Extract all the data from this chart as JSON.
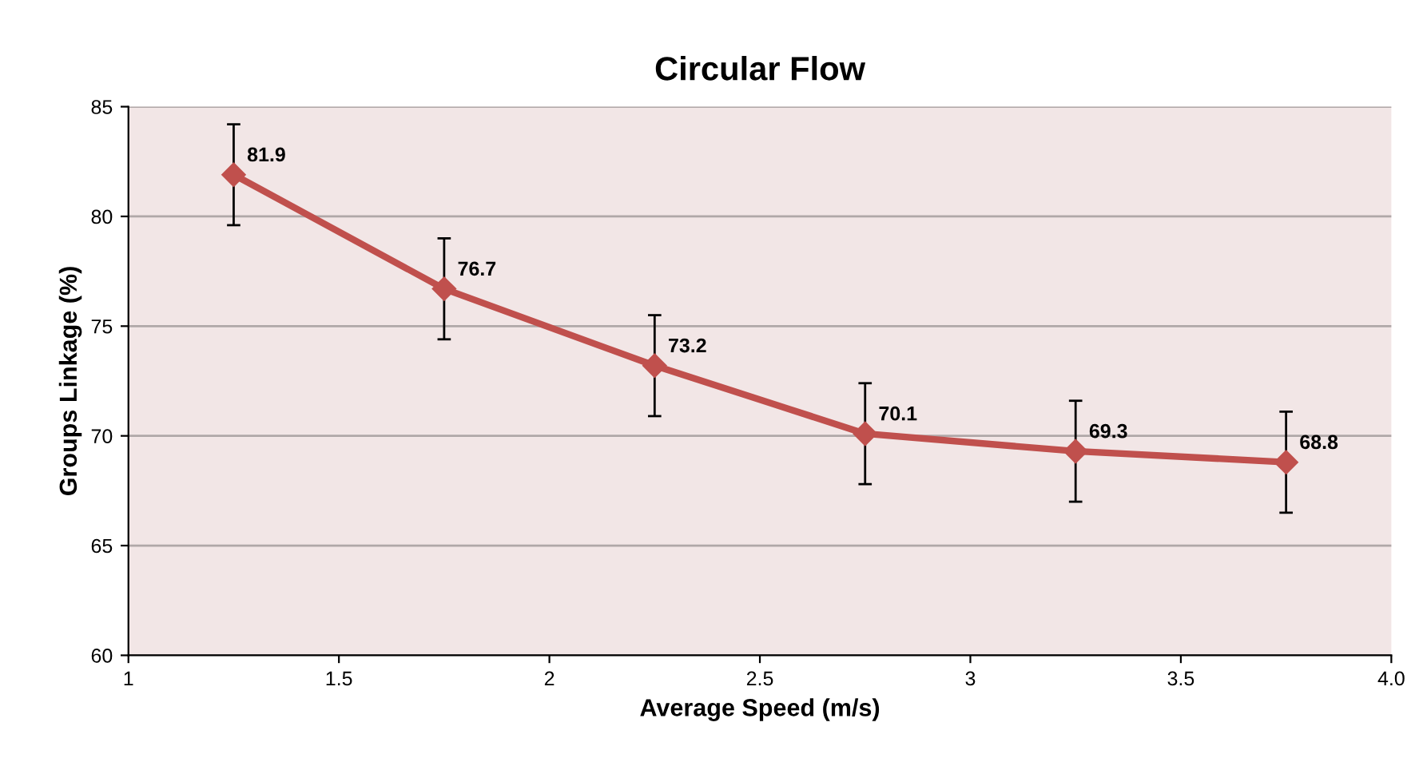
{
  "chart_data": {
    "type": "line",
    "title": "Circular Flow",
    "xlabel": "Average Speed (m/s)",
    "ylabel": "Groups Linkage (%)",
    "x": [
      1.25,
      1.75,
      2.25,
      2.75,
      3.25,
      3.75
    ],
    "series": [
      {
        "color": "#c0504d",
        "values": [
          81.9,
          76.7,
          73.2,
          70.1,
          69.3,
          68.8
        ],
        "errors": [
          2.3,
          2.3,
          2.3,
          2.3,
          2.3,
          2.3
        ]
      }
    ],
    "xlim": [
      1,
      4
    ],
    "xticks": [
      1,
      1.5,
      2,
      2.5,
      3,
      3.5,
      {
        "value": 4,
        "label": "4.0"
      }
    ],
    "ylim": [
      60,
      85
    ],
    "yticks": [
      60,
      65,
      70,
      75,
      80,
      85
    ],
    "grid": "y",
    "marker": "diamond",
    "line_style": "solid",
    "data_labels": true,
    "legend": false
  }
}
